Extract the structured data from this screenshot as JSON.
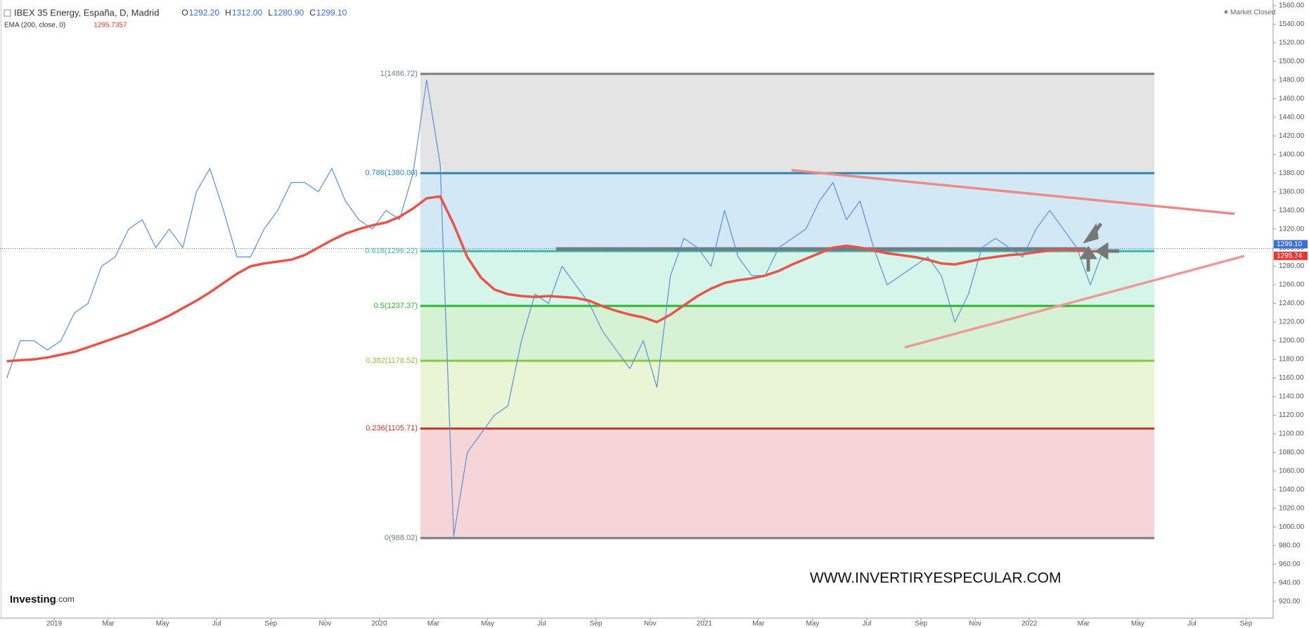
{
  "chart_data": {
    "type": "line",
    "title": "IBEX 35 Energy, España, D, Madrid",
    "ohlc": [
      {
        "key": "O",
        "value": "1292.20"
      },
      {
        "key": "H",
        "value": "1312.00"
      },
      {
        "key": "L",
        "value": "1280.90"
      },
      {
        "key": "C",
        "value": "1299.10"
      }
    ],
    "indicator": "EMA (200, close, 0)",
    "indicator_value": "1295.7357",
    "status": "Market Closed",
    "watermark": "WWW.INVERTIRYESPECULAR.COM",
    "logo": {
      "brand": "Investing",
      "suffix": ".com"
    },
    "categories": [
      null,
      null,
      null,
      null,
      "2019",
      null,
      null,
      null,
      "Mar",
      null,
      null,
      null,
      "May",
      null,
      null,
      null,
      "Jul",
      null,
      null,
      null,
      "Sep",
      null,
      null,
      null,
      "Nov",
      null,
      null,
      null,
      "2020",
      null,
      null,
      null,
      "Mar",
      null,
      null,
      null,
      "May",
      null,
      null,
      null,
      "Jul",
      null,
      null,
      null,
      "Sep",
      null,
      null,
      null,
      "Nov",
      null,
      null,
      null,
      "2021",
      null,
      null,
      null,
      "Mar",
      null,
      null,
      null,
      "May",
      null,
      null,
      null,
      "Jul",
      null,
      null,
      null,
      "Sep",
      null,
      null,
      null,
      "Nov",
      null,
      null,
      null,
      "2022",
      null,
      null,
      null,
      "Mar",
      null,
      null,
      null,
      "May",
      null,
      null,
      null,
      "Jul",
      null,
      null,
      null,
      "Sep",
      null
    ],
    "series": [
      {
        "name": "IBEX 35 Energy",
        "color": "#5b8fd6",
        "width": 1.2,
        "values": [
          1160,
          1200,
          1200,
          1190,
          1200,
          1230,
          1240,
          1280,
          1290,
          1320,
          1330,
          1300,
          1320,
          1300,
          1360,
          1385,
          1340,
          1290,
          1290,
          1320,
          1340,
          1370,
          1370,
          1360,
          1385,
          1350,
          1330,
          1320,
          1340,
          1330,
          1380,
          1480,
          1390,
          990,
          1080,
          1100,
          1120,
          1130,
          1200,
          1250,
          1240,
          1280,
          1260,
          1240,
          1210,
          1190,
          1170,
          1200,
          1150,
          1270,
          1310,
          1300,
          1280,
          1340,
          1290,
          1270,
          1270,
          1300,
          1310,
          1320,
          1350,
          1370,
          1330,
          1350,
          1300,
          1260,
          1270,
          1280,
          1290,
          1270,
          1220,
          1250,
          1300,
          1310,
          1300,
          1290,
          1320,
          1340,
          1320,
          1300,
          1260,
          1299.1,
          null,
          null,
          null,
          null,
          null,
          null,
          null,
          null,
          null,
          null,
          null,
          null
        ]
      },
      {
        "name": "EMA (200, close, 0)",
        "color": "#e8544a",
        "width": 3.5,
        "values": [
          1178,
          1179,
          1180,
          1182,
          1185,
          1188,
          1193,
          1198,
          1203,
          1208,
          1214,
          1220,
          1227,
          1235,
          1243,
          1252,
          1262,
          1272,
          1280,
          1283,
          1285,
          1287,
          1292,
          1300,
          1308,
          1315,
          1320,
          1324,
          1327,
          1333,
          1342,
          1353,
          1355,
          1325,
          1290,
          1268,
          1255,
          1250,
          1248,
          1247,
          1248,
          1247,
          1246,
          1243,
          1237,
          1232,
          1228,
          1225,
          1220,
          1228,
          1238,
          1248,
          1256,
          1262,
          1265,
          1267,
          1270,
          1275,
          1282,
          1288,
          1294,
          1300,
          1302,
          1300,
          1297,
          1294,
          1292,
          1290,
          1287,
          1283,
          1282,
          1285,
          1288,
          1290,
          1292,
          1293,
          1295,
          1297,
          1298,
          1297,
          1296,
          1295.7357,
          null,
          null,
          null,
          null,
          null,
          null,
          null,
          null,
          null,
          null,
          null,
          null
        ]
      }
    ],
    "fib_levels": [
      {
        "label": "1(1486.72)",
        "value": 1486.72,
        "color": "#787b86",
        "fill": "#e4e4e4"
      },
      {
        "label": "0.786(1380.00)",
        "value": 1380.0,
        "color": "#2a86b8",
        "fill": "#d3e8f5"
      },
      {
        "label": "0.618(1296.22)",
        "value": 1296.22,
        "color": "#3fb8a8",
        "fill": "#d5f4ea"
      },
      {
        "label": "0.5(1237.37)",
        "value": 1237.37,
        "color": "#2db52d",
        "fill": "#d6f2d4"
      },
      {
        "label": "0.382(1178.52)",
        "value": 1178.52,
        "color": "#8cc63f",
        "fill": "#eaf5d6"
      },
      {
        "label": "0.236(1105.71)",
        "value": 1105.71,
        "color": "#c0392b",
        "fill": "#f5d5d8"
      },
      {
        "label": "0(988.02)",
        "value": 988.02,
        "color": "#787b86"
      }
    ],
    "last_price": {
      "value": 1299.1,
      "label": "1299.10",
      "color": "#3b6fd6"
    },
    "last_ema": {
      "value": 1295.74,
      "label": "1295.74",
      "color": "#e53935"
    },
    "ylim": [
      902,
      1566
    ],
    "yticks": [
      {
        "value": 920,
        "label": "920.00"
      },
      {
        "value": 940,
        "label": "940.00"
      },
      {
        "value": 960,
        "label": "960.00"
      },
      {
        "value": 980,
        "label": "980.00"
      },
      {
        "value": 1000,
        "label": "1000.00"
      },
      {
        "value": 1020,
        "label": "1020.00"
      },
      {
        "value": 1040,
        "label": "1040.00"
      },
      {
        "value": 1060,
        "label": "1060.00"
      },
      {
        "value": 1080,
        "label": "1080.00"
      },
      {
        "value": 1100,
        "label": "1100.00"
      },
      {
        "value": 1120,
        "label": "1120.00"
      },
      {
        "value": 1140,
        "label": "1140.00"
      },
      {
        "value": 1160,
        "label": "1160.00"
      },
      {
        "value": 1180,
        "label": "1180.00"
      },
      {
        "value": 1200,
        "label": "1200.00"
      },
      {
        "value": 1220,
        "label": "1220.00"
      },
      {
        "value": 1240,
        "label": "1240.00"
      },
      {
        "value": 1260,
        "label": "1260.00"
      },
      {
        "value": 1280,
        "label": "1280.00"
      },
      {
        "value": 1300,
        "label": "1300.00"
      },
      {
        "value": 1320,
        "label": "1320.00"
      },
      {
        "value": 1340,
        "label": "1340.00"
      },
      {
        "value": 1360,
        "label": "1360.00"
      },
      {
        "value": 1380,
        "label": "1380.00"
      },
      {
        "value": 1400,
        "label": "1400.00"
      },
      {
        "value": 1420,
        "label": "1420.00"
      },
      {
        "value": 1440,
        "label": "1440.00"
      },
      {
        "value": 1460,
        "label": "1460.00"
      },
      {
        "value": 1480,
        "label": "1480.00"
      },
      {
        "value": 1500,
        "label": "1500.00"
      },
      {
        "value": 1520,
        "label": "1520.00"
      },
      {
        "value": 1540,
        "label": "1540.00"
      },
      {
        "value": 1560,
        "label": "1560.00"
      }
    ],
    "grid": false
  }
}
